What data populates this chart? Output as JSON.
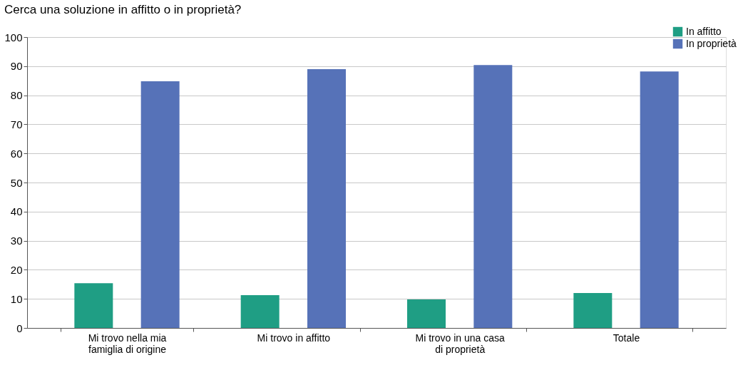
{
  "chart_data": {
    "type": "bar",
    "title": "Cerca una soluzione in affitto o in proprietà?",
    "categories": [
      "Mi trovo nella mia famiglia di origine",
      "Mi trovo in affitto",
      "Mi trovo in una casa di proprietà",
      "Totale"
    ],
    "series": [
      {
        "name": "In affitto",
        "color": "#1f9e84",
        "values": [
          15.4,
          11.3,
          9.8,
          12.0
        ]
      },
      {
        "name": "In proprietà",
        "color": "#5672b8",
        "values": [
          84.8,
          89.0,
          90.4,
          88.2
        ]
      }
    ],
    "ylim": [
      0,
      100
    ],
    "yticks": [
      0,
      10,
      20,
      30,
      40,
      50,
      60,
      70,
      80,
      90,
      100
    ],
    "grid": "y",
    "legend": "top right"
  }
}
